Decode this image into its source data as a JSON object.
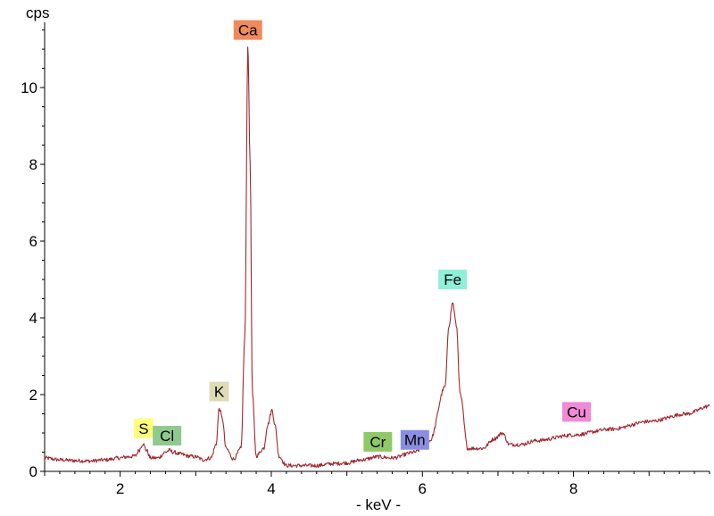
{
  "chart_data": {
    "type": "line",
    "title": "",
    "xlabel": "- keV -",
    "ylabel": "cps",
    "xlim": [
      1.0,
      9.8
    ],
    "ylim": [
      0,
      11.7
    ],
    "x_ticks": [
      2,
      4,
      6,
      8
    ],
    "y_ticks": [
      0,
      2,
      4,
      6,
      8,
      10
    ],
    "grid": false,
    "line_color": "#a02830",
    "series": [
      {
        "x": [
          1.0,
          1.2,
          1.4,
          1.6,
          1.8,
          2.0,
          2.1,
          2.2,
          2.25,
          2.3,
          2.35,
          2.4,
          2.5,
          2.6,
          2.65,
          2.7,
          2.8,
          2.9,
          3.0,
          3.1,
          3.2,
          3.27,
          3.31,
          3.35,
          3.4,
          3.5,
          3.6,
          3.65,
          3.69,
          3.72,
          3.75,
          3.8,
          3.9,
          3.95,
          4.01,
          4.05,
          4.1,
          4.2,
          4.4,
          4.6,
          4.8,
          5.0,
          5.2,
          5.41,
          5.6,
          5.9,
          6.1,
          6.3,
          6.35,
          6.4,
          6.45,
          6.5,
          6.6,
          6.8,
          6.95,
          7.06,
          7.15,
          7.3,
          7.5,
          8.0,
          8.5,
          9.0,
          9.5,
          9.8
        ],
        "y": [
          0.35,
          0.3,
          0.28,
          0.27,
          0.3,
          0.35,
          0.38,
          0.4,
          0.55,
          0.72,
          0.55,
          0.35,
          0.35,
          0.5,
          0.55,
          0.5,
          0.45,
          0.4,
          0.38,
          0.3,
          0.35,
          0.7,
          1.65,
          1.4,
          0.6,
          0.32,
          0.6,
          3.5,
          11.15,
          8.0,
          2.0,
          0.4,
          0.6,
          1.2,
          1.6,
          1.2,
          0.4,
          0.15,
          0.15,
          0.15,
          0.2,
          0.22,
          0.3,
          0.38,
          0.35,
          0.5,
          0.8,
          2.2,
          3.8,
          4.4,
          3.8,
          2.0,
          0.6,
          0.6,
          0.85,
          1.0,
          0.7,
          0.7,
          0.8,
          0.95,
          1.1,
          1.3,
          1.5,
          1.7
        ]
      }
    ],
    "element_markers": [
      {
        "label": "S",
        "energy": 2.31,
        "y": 1.12,
        "color": "#ffff7a"
      },
      {
        "label": "Cl",
        "energy": 2.62,
        "y": 0.93,
        "color": "#8fc98f"
      },
      {
        "label": "K",
        "energy": 3.31,
        "y": 2.08,
        "color": "#dedcb5"
      },
      {
        "label": "Ca",
        "energy": 3.69,
        "y": 11.5,
        "color": "#f08a5c"
      },
      {
        "label": "Cr",
        "energy": 5.41,
        "y": 0.77,
        "color": "#8fc967"
      },
      {
        "label": "Mn",
        "energy": 5.9,
        "y": 0.82,
        "color": "#8a8ee0"
      },
      {
        "label": "Fe",
        "energy": 6.4,
        "y": 5.0,
        "color": "#8ff0d8"
      },
      {
        "label": "Cu",
        "energy": 8.04,
        "y": 1.55,
        "color": "#f08ad6"
      }
    ]
  }
}
